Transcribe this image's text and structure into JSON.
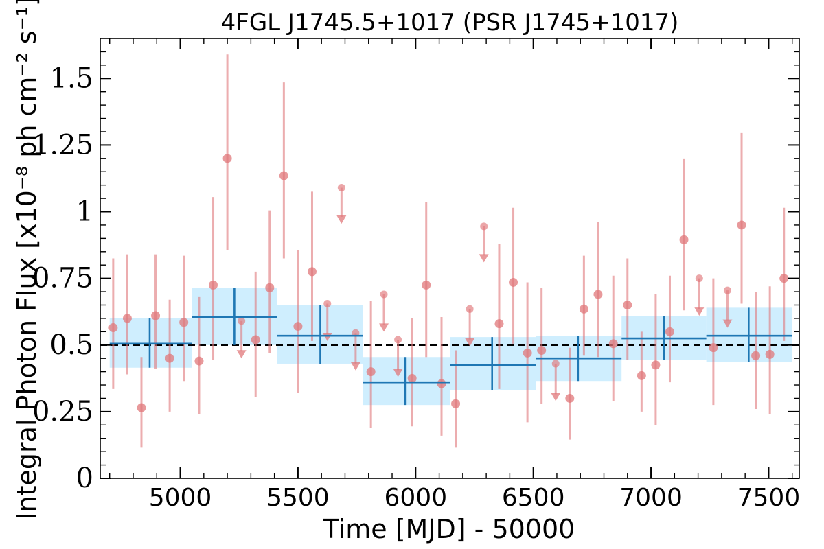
{
  "chart_data": {
    "type": "scatter",
    "title": "4FGL J1745.5+1017 (PSR J1745+1017)",
    "xlabel": "Time [MJD] - 50000",
    "ylabel": "Integral Photon Flux [x10⁻⁸ ph cm⁻² s⁻¹]",
    "xlim": [
      4660,
      7630
    ],
    "ylim": [
      0,
      1.65
    ],
    "xticks": [
      5000,
      5500,
      6000,
      6500,
      7000,
      7500
    ],
    "xtick_labels": [
      "5000",
      "5500",
      "6000",
      "6500",
      "7000",
      "7500"
    ],
    "yticks": [
      0,
      0.25,
      0.5,
      0.75,
      1.0,
      1.25,
      1.5
    ],
    "ytick_labels": [
      "0",
      "0.25",
      "0.5",
      "0.75",
      "1",
      "1.25",
      "1.5"
    ],
    "reference_line": 0.5,
    "colors": {
      "points": "#e0777a",
      "bins": "#1f77b4",
      "band": "#cfeefe",
      "reference": "#000000"
    },
    "series": [
      {
        "kind": "short_bin_detections",
        "points": [
          {
            "x": 4715,
            "y": 0.565,
            "lo": 0.335,
            "hi": 0.825
          },
          {
            "x": 4775,
            "y": 0.6,
            "lo": 0.39,
            "hi": 0.84
          },
          {
            "x": 4835,
            "y": 0.265,
            "lo": 0.115,
            "hi": 0.455
          },
          {
            "x": 4895,
            "y": 0.61,
            "lo": 0.41,
            "hi": 0.84
          },
          {
            "x": 4955,
            "y": 0.45,
            "lo": 0.25,
            "hi": 0.67
          },
          {
            "x": 5015,
            "y": 0.585,
            "lo": 0.365,
            "hi": 0.835
          },
          {
            "x": 5080,
            "y": 0.44,
            "lo": 0.24,
            "hi": 0.68
          },
          {
            "x": 5140,
            "y": 0.725,
            "lo": 0.445,
            "hi": 1.055
          },
          {
            "x": 5200,
            "y": 1.2,
            "lo": 0.855,
            "hi": 1.59
          },
          {
            "x": 5320,
            "y": 0.52,
            "lo": 0.305,
            "hi": 0.775
          },
          {
            "x": 5380,
            "y": 0.715,
            "lo": 0.47,
            "hi": 1.005
          },
          {
            "x": 5440,
            "y": 1.135,
            "lo": 0.825,
            "hi": 1.485
          },
          {
            "x": 5500,
            "y": 0.57,
            "lo": 0.32,
            "hi": 0.855
          },
          {
            "x": 5560,
            "y": 0.775,
            "lo": 0.515,
            "hi": 1.075
          },
          {
            "x": 5810,
            "y": 0.4,
            "lo": 0.19,
            "hi": 0.665
          },
          {
            "x": 5985,
            "y": 0.375,
            "lo": 0.195,
            "hi": 0.6
          },
          {
            "x": 6045,
            "y": 0.725,
            "lo": 0.455,
            "hi": 1.035
          },
          {
            "x": 6110,
            "y": 0.355,
            "lo": 0.16,
            "hi": 0.605
          },
          {
            "x": 6170,
            "y": 0.28,
            "lo": 0.115,
            "hi": 0.48
          },
          {
            "x": 6355,
            "y": 0.58,
            "lo": 0.335,
            "hi": 0.88
          },
          {
            "x": 6415,
            "y": 0.735,
            "lo": 0.505,
            "hi": 1.015
          },
          {
            "x": 6475,
            "y": 0.47,
            "lo": 0.21,
            "hi": 0.735
          },
          {
            "x": 6535,
            "y": 0.48,
            "lo": 0.28,
            "hi": 0.715
          },
          {
            "x": 6655,
            "y": 0.3,
            "lo": 0.145,
            "hi": 0.49
          },
          {
            "x": 6715,
            "y": 0.635,
            "lo": 0.46,
            "hi": 0.835
          },
          {
            "x": 6775,
            "y": 0.69,
            "lo": 0.455,
            "hi": 0.96
          },
          {
            "x": 6840,
            "y": 0.505,
            "lo": 0.29,
            "hi": 0.76
          },
          {
            "x": 6900,
            "y": 0.65,
            "lo": 0.445,
            "hi": 0.825
          },
          {
            "x": 6960,
            "y": 0.385,
            "lo": 0.25,
            "hi": 0.55
          },
          {
            "x": 7020,
            "y": 0.425,
            "lo": 0.2,
            "hi": 0.69
          },
          {
            "x": 7080,
            "y": 0.55,
            "lo": 0.36,
            "hi": 0.76
          },
          {
            "x": 7140,
            "y": 0.895,
            "lo": 0.63,
            "hi": 1.2
          },
          {
            "x": 7265,
            "y": 0.49,
            "lo": 0.275,
            "hi": 0.75
          },
          {
            "x": 7385,
            "y": 0.95,
            "lo": 0.655,
            "hi": 1.295
          },
          {
            "x": 7445,
            "y": 0.46,
            "lo": 0.26,
            "hi": 0.7
          },
          {
            "x": 7505,
            "y": 0.465,
            "lo": 0.24,
            "hi": 0.72
          },
          {
            "x": 7565,
            "y": 0.75,
            "lo": 0.515,
            "hi": 1.015
          }
        ]
      },
      {
        "kind": "short_bin_upper_limits",
        "points": [
          {
            "x": 5260,
            "y": 0.59,
            "arrow_to": 0.455
          },
          {
            "x": 5625,
            "y": 0.655,
            "arrow_to": 0.52
          },
          {
            "x": 5685,
            "y": 1.09,
            "arrow_to": 0.96
          },
          {
            "x": 5745,
            "y": 0.545,
            "arrow_to": 0.41
          },
          {
            "x": 5865,
            "y": 0.69,
            "arrow_to": 0.555
          },
          {
            "x": 5925,
            "y": 0.52,
            "arrow_to": 0.385
          },
          {
            "x": 6230,
            "y": 0.635,
            "arrow_to": 0.5
          },
          {
            "x": 6290,
            "y": 0.945,
            "arrow_to": 0.815
          },
          {
            "x": 6595,
            "y": 0.43,
            "arrow_to": 0.295
          },
          {
            "x": 7205,
            "y": 0.75,
            "arrow_to": 0.615
          },
          {
            "x": 7325,
            "y": 0.705,
            "arrow_to": 0.57
          }
        ]
      },
      {
        "kind": "long_bins",
        "bins": [
          {
            "x0": 4700,
            "x1": 5050,
            "y": 0.505,
            "lo": 0.415,
            "hi": 0.6,
            "xc": 4870
          },
          {
            "x0": 5050,
            "x1": 5410,
            "y": 0.605,
            "lo": 0.5,
            "hi": 0.715,
            "xc": 5230
          },
          {
            "x0": 5410,
            "x1": 5775,
            "y": 0.535,
            "lo": 0.43,
            "hi": 0.65,
            "xc": 5595
          },
          {
            "x0": 5775,
            "x1": 6145,
            "y": 0.36,
            "lo": 0.275,
            "hi": 0.455,
            "xc": 5955
          },
          {
            "x0": 6145,
            "x1": 6510,
            "y": 0.425,
            "lo": 0.33,
            "hi": 0.53,
            "xc": 6325
          },
          {
            "x0": 6510,
            "x1": 6875,
            "y": 0.45,
            "lo": 0.365,
            "hi": 0.535,
            "xc": 6690
          },
          {
            "x0": 6875,
            "x1": 7235,
            "y": 0.525,
            "lo": 0.445,
            "hi": 0.61,
            "xc": 7055
          },
          {
            "x0": 7235,
            "x1": 7600,
            "y": 0.535,
            "lo": 0.435,
            "hi": 0.64,
            "xc": 7415
          }
        ]
      }
    ]
  }
}
